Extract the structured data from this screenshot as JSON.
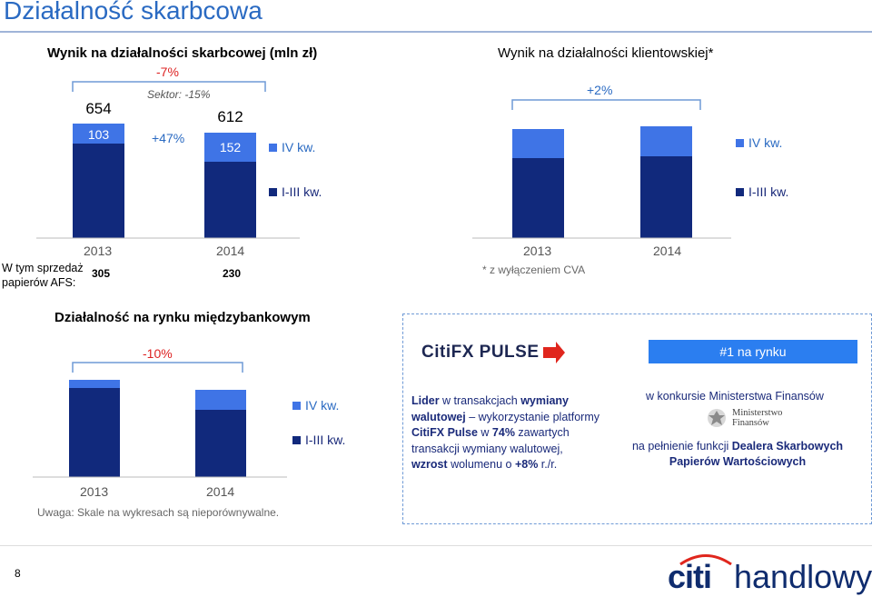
{
  "page": {
    "title": "Działalność skarbcowa",
    "page_number": "8",
    "note": "Uwaga: Skale na wykresach są nieporównywalne.",
    "brand": {
      "mark": "citi",
      "name": "handlowy"
    }
  },
  "legend": {
    "q4": "IV kw.",
    "q13": "I-III kw."
  },
  "colors": {
    "q4": "#3f74e6",
    "q13": "#11297c",
    "red": "#dd2222",
    "blue_text": "#2a6ac2"
  },
  "chart1": {
    "title": "Wynik na działalności skarbcowej (mln zł)",
    "change_total": "-7%",
    "sector_label": "Sektor: -15%",
    "q4_change": "+47%",
    "years": [
      "2013",
      "2014"
    ],
    "totals": [
      "654",
      "612"
    ],
    "q4_values": [
      "103",
      "152"
    ],
    "afs_label_1": "W tym sprzedaż",
    "afs_label_2": "papierów AFS:",
    "afs_values": [
      "305",
      "230"
    ]
  },
  "chart2": {
    "title": "Wynik na działalności klientowskiej*",
    "change_total": "+2%",
    "years": [
      "2013",
      "2014"
    ],
    "footnote": "* z wyłączeniem CVA"
  },
  "chart3": {
    "title": "Działalność na rynku międzybankowym",
    "change_total": "-10%",
    "years": [
      "2013",
      "2014"
    ]
  },
  "info": {
    "logo_text": "CitiFX PULSE",
    "rank_badge": "#1 na rynku",
    "left_bold_1": "Lider",
    "left_text_1": " w transakcjach ",
    "left_bold_2": "wymiany",
    "left_bold_3": "walutowej",
    "left_text_2": " – wykorzystanie platformy",
    "left_bold_4": "CitiFX Pulse",
    "left_text_3": " w ",
    "left_bold_5": "74%",
    "left_text_4": " zawartych",
    "left_text_5": "transakcji wymiany walutowej,",
    "left_bold_6": "wzrost",
    "left_text_6": " wolumenu o ",
    "left_bold_7": "+8%",
    "left_text_7": " r./r.",
    "right_text_1": "w konkursie Ministerstwa Finansów",
    "ministry_line_1": "Ministerstwo",
    "ministry_line_2": "Finansów",
    "right_text_2": "na pełnienie funkcji ",
    "right_bold_1": "Dealera Skarbowych",
    "right_bold_2": "Papierów Wartościowych"
  },
  "chart_data": [
    {
      "type": "bar",
      "stacked": true,
      "title": "Wynik na działalności skarbcowej (mln zł)",
      "categories": [
        "2013",
        "2014"
      ],
      "series": [
        {
          "name": "I-III kw.",
          "values": [
            551,
            460
          ]
        },
        {
          "name": "IV kw.",
          "values": [
            103,
            152
          ]
        }
      ],
      "totals": [
        654,
        612
      ]
    },
    {
      "type": "bar",
      "stacked": true,
      "title": "Wynik na działalności klientowskiej*",
      "categories": [
        "2013",
        "2014"
      ],
      "series": [
        {
          "name": "I-III kw.",
          "values": [
            0.74,
            0.76
          ]
        },
        {
          "name": "IV kw.",
          "values": [
            0.26,
            0.26
          ]
        }
      ]
    },
    {
      "type": "bar",
      "stacked": true,
      "title": "Działalność na rynku międzybankowym",
      "categories": [
        "2013",
        "2014"
      ],
      "series": [
        {
          "name": "I-III kw.",
          "values": [
            0.92,
            0.7
          ]
        },
        {
          "name": "IV kw.",
          "values": [
            0.08,
            0.21
          ]
        }
      ]
    }
  ]
}
